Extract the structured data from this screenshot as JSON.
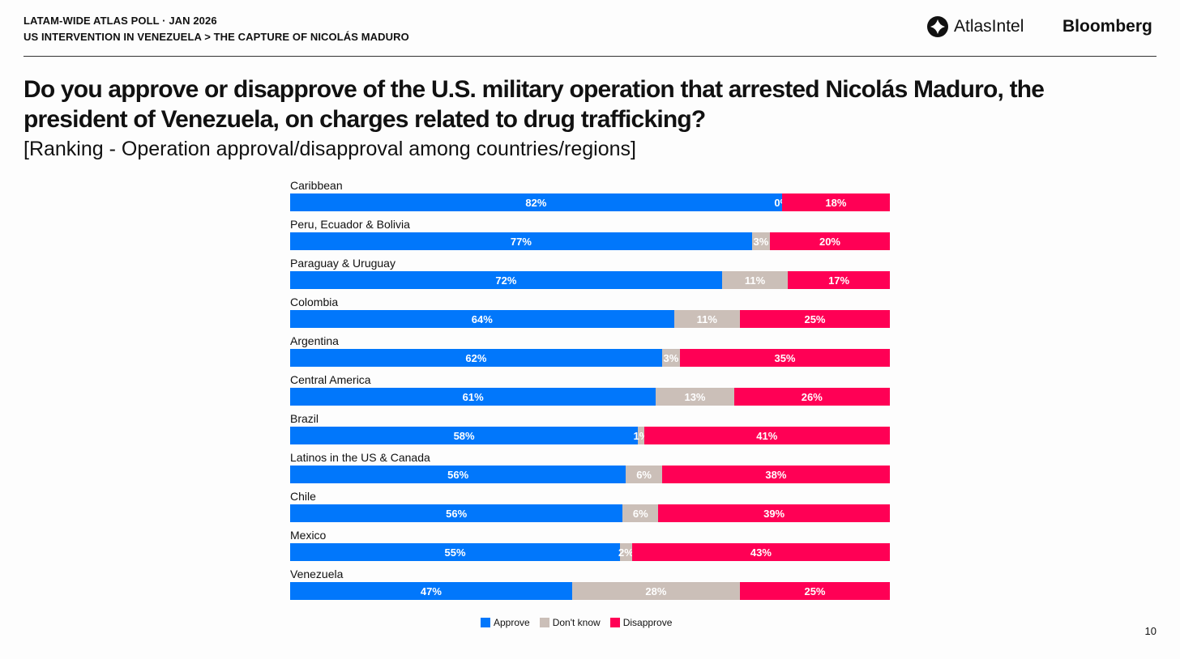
{
  "header": {
    "kicker_1": "LATAM-WIDE ATLAS POLL · JAN 2026",
    "kicker_2": "US INTERVENTION IN VENEZUELA > THE CAPTURE OF NICOLÁS MADURO",
    "logo_atlas": "AtlasIntel",
    "logo_bloomberg": "Bloomberg"
  },
  "page_number": "10",
  "colors": {
    "approve": "#0177FB",
    "dont_know": "#CBBFB8",
    "disapprove": "#FF0055"
  },
  "chart_data": {
    "type": "bar",
    "orientation": "horizontal-stacked-100",
    "title": "Do you approve or disapprove of the U.S. military operation that arrested Nicolás Maduro, the president of Venezuela, on charges related to drug trafficking?",
    "subtitle": "[Ranking - Operation approval/disapproval among countries/regions]",
    "categories": [
      "Caribbean",
      "Peru, Ecuador & Bolivia",
      "Paraguay & Uruguay",
      "Colombia",
      "Argentina",
      "Central America",
      "Brazil",
      "Latinos in the US & Canada",
      "Chile",
      "Mexico",
      "Venezuela"
    ],
    "series": [
      {
        "name": "Approve",
        "values": [
          82,
          77,
          72,
          64,
          62,
          61,
          58,
          56,
          56,
          55,
          47
        ]
      },
      {
        "name": "Don't know",
        "values": [
          0,
          3,
          11,
          11,
          3,
          13,
          1,
          6,
          6,
          2,
          28
        ]
      },
      {
        "name": "Disapprove",
        "values": [
          18,
          20,
          17,
          25,
          35,
          26,
          41,
          38,
          39,
          43,
          25
        ]
      }
    ],
    "legend": "bottom-center",
    "xlim": [
      0,
      100
    ]
  }
}
